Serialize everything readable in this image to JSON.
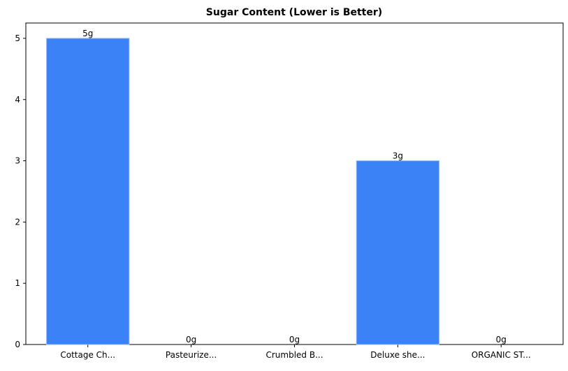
{
  "chart_data": {
    "type": "bar",
    "title": "Sugar Content (Lower is Better)",
    "categories": [
      "Cottage Ch...",
      "Pasteurize...",
      "Crumbled B...",
      "Deluxe she...",
      "ORGANIC ST..."
    ],
    "values": [
      5,
      0,
      0,
      3,
      0
    ],
    "value_labels": [
      "5g",
      "0g",
      "0g",
      "3g",
      "0g"
    ],
    "color": "#3b82f6",
    "ylim": [
      0,
      5.25
    ],
    "yticks": [
      0,
      1,
      2,
      3,
      4,
      5
    ],
    "grid": false
  }
}
